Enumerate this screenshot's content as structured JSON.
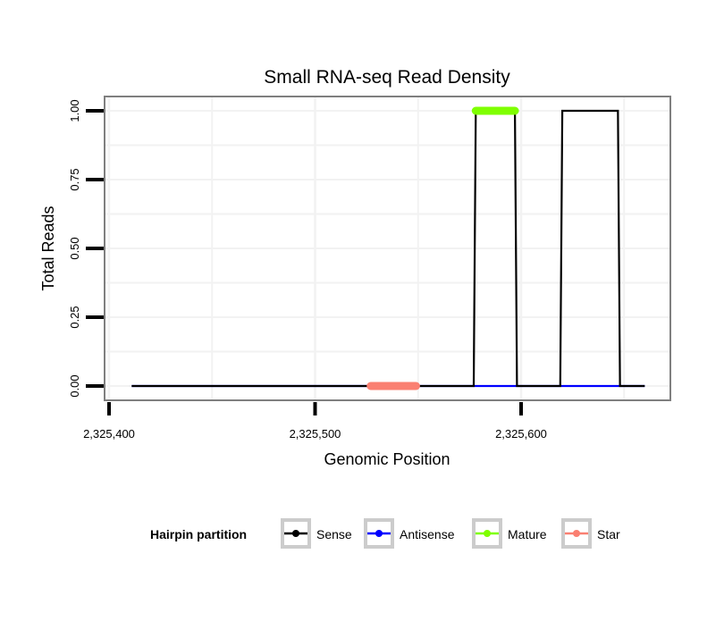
{
  "chart_data": {
    "type": "line",
    "title": "Small RNA-seq Read Density",
    "xlabel": "Genomic Position",
    "ylabel": "Total Reads",
    "xlim": [
      2325389,
      2325671
    ],
    "ylim": [
      -0.05,
      1.05
    ],
    "x_ticks": [
      2325400,
      2325500,
      2325600
    ],
    "x_tick_labels": [
      "2,325,400",
      "2,325,500",
      "2,325,600"
    ],
    "y_ticks": [
      0,
      0.25,
      0.5,
      0.75,
      1.0
    ],
    "y_tick_labels": [
      "0.00",
      "0.25",
      "0.50",
      "0.75",
      "1.00"
    ],
    "grid": true,
    "legend": {
      "title": "Hairpin partition",
      "placement": "bottom"
    },
    "series": [
      {
        "name": "Antisense",
        "color": "#0000ff",
        "x": [
          2325411,
          2325660
        ],
        "y": [
          0,
          0
        ]
      },
      {
        "name": "Sense",
        "color": "#000000",
        "x": [
          2325411,
          2325577,
          2325578,
          2325597,
          2325598,
          2325619,
          2325620,
          2325647,
          2325648,
          2325660
        ],
        "y": [
          0,
          0,
          1,
          1,
          0,
          0,
          1,
          1,
          0,
          0
        ]
      },
      {
        "name": "Mature",
        "color": "#7fff00",
        "x": [
          2325578,
          2325597
        ],
        "y": [
          1,
          1
        ]
      },
      {
        "name": "Star",
        "color": "#fa8072",
        "x": [
          2325527,
          2325549
        ],
        "y": [
          0,
          0
        ]
      }
    ],
    "legend_order": [
      "Sense",
      "Antisense",
      "Mature",
      "Star"
    ]
  }
}
